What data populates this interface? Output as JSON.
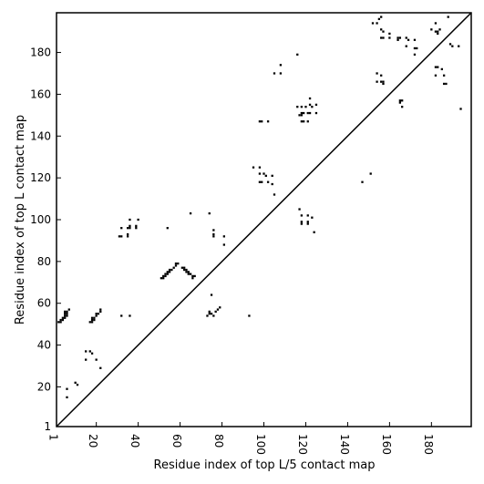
{
  "chart_data": {
    "type": "heatmap",
    "xlabel": "Residue index of top L/5 contact map",
    "ylabel": "Residue index of top L contact map",
    "xlim": [
      1,
      199
    ],
    "ylim": [
      1,
      199
    ],
    "x_ticks": [
      1,
      20,
      40,
      60,
      80,
      100,
      120,
      140,
      160,
      180
    ],
    "y_ticks": [
      1,
      20,
      40,
      60,
      80,
      100,
      120,
      140,
      160,
      180
    ],
    "diagonal": true,
    "cell_color": "#000000",
    "points": [
      [
        2,
        51
      ],
      [
        3,
        51
      ],
      [
        3,
        52
      ],
      [
        4,
        52
      ],
      [
        4,
        53
      ],
      [
        5,
        53
      ],
      [
        5,
        54
      ],
      [
        6,
        54
      ],
      [
        5,
        55
      ],
      [
        6,
        55
      ],
      [
        5,
        56
      ],
      [
        6,
        56
      ],
      [
        7,
        57
      ],
      [
        6,
        19
      ],
      [
        6,
        15
      ],
      [
        10,
        22
      ],
      [
        11,
        21
      ],
      [
        17,
        51
      ],
      [
        18,
        51
      ],
      [
        18,
        52
      ],
      [
        19,
        52
      ],
      [
        18,
        53
      ],
      [
        19,
        53
      ],
      [
        20,
        54
      ],
      [
        20,
        55
      ],
      [
        21,
        55
      ],
      [
        22,
        56
      ],
      [
        22,
        57
      ],
      [
        15,
        37
      ],
      [
        17,
        37
      ],
      [
        18,
        36
      ],
      [
        15,
        33
      ],
      [
        20,
        33
      ],
      [
        22,
        29
      ],
      [
        31,
        92
      ],
      [
        32,
        92
      ],
      [
        32,
        96
      ],
      [
        35,
        92
      ],
      [
        35,
        93
      ],
      [
        35,
        96
      ],
      [
        36,
        96
      ],
      [
        36,
        97
      ],
      [
        36,
        100
      ],
      [
        39,
        96
      ],
      [
        39,
        97
      ],
      [
        40,
        100
      ],
      [
        32,
        54
      ],
      [
        36,
        54
      ],
      [
        54,
        96
      ],
      [
        51,
        72
      ],
      [
        52,
        72
      ],
      [
        52,
        73
      ],
      [
        53,
        73
      ],
      [
        53,
        74
      ],
      [
        54,
        74
      ],
      [
        54,
        75
      ],
      [
        55,
        75
      ],
      [
        55,
        76
      ],
      [
        56,
        76
      ],
      [
        57,
        77
      ],
      [
        58,
        78
      ],
      [
        58,
        79
      ],
      [
        59,
        79
      ],
      [
        61,
        77
      ],
      [
        62,
        77
      ],
      [
        62,
        76
      ],
      [
        63,
        76
      ],
      [
        63,
        75
      ],
      [
        64,
        75
      ],
      [
        64,
        74
      ],
      [
        65,
        74
      ],
      [
        66,
        73
      ],
      [
        67,
        73
      ],
      [
        66,
        72
      ],
      [
        65,
        103
      ],
      [
        74,
        103
      ],
      [
        76,
        95
      ],
      [
        76,
        93
      ],
      [
        76,
        92
      ],
      [
        81,
        92
      ],
      [
        81,
        88
      ],
      [
        75,
        64
      ],
      [
        73,
        54
      ],
      [
        74,
        55
      ],
      [
        74,
        56
      ],
      [
        75,
        55
      ],
      [
        76,
        54
      ],
      [
        77,
        56
      ],
      [
        78,
        57
      ],
      [
        79,
        58
      ],
      [
        93,
        54
      ],
      [
        95,
        125
      ],
      [
        98,
        125
      ],
      [
        98,
        122
      ],
      [
        100,
        122
      ],
      [
        101,
        121
      ],
      [
        104,
        121
      ],
      [
        98,
        118
      ],
      [
        99,
        118
      ],
      [
        102,
        118
      ],
      [
        104,
        117
      ],
      [
        105,
        112
      ],
      [
        98,
        147
      ],
      [
        99,
        147
      ],
      [
        102,
        147
      ],
      [
        105,
        170
      ],
      [
        108,
        170
      ],
      [
        108,
        174
      ],
      [
        116,
        179
      ],
      [
        116,
        154
      ],
      [
        118,
        154
      ],
      [
        120,
        154
      ],
      [
        118,
        151
      ],
      [
        119,
        151
      ],
      [
        117,
        150
      ],
      [
        118,
        150
      ],
      [
        118,
        147
      ],
      [
        119,
        147
      ],
      [
        121,
        147
      ],
      [
        121,
        151
      ],
      [
        122,
        151
      ],
      [
        123,
        154
      ],
      [
        122,
        155
      ],
      [
        125,
        155
      ],
      [
        125,
        151
      ],
      [
        122,
        158
      ],
      [
        117,
        105
      ],
      [
        118,
        102
      ],
      [
        121,
        102
      ],
      [
        118,
        99
      ],
      [
        118,
        98
      ],
      [
        121,
        98
      ],
      [
        121,
        99
      ],
      [
        123,
        101
      ],
      [
        124,
        94
      ],
      [
        147,
        118
      ],
      [
        151,
        122
      ],
      [
        152,
        194
      ],
      [
        154,
        194
      ],
      [
        155,
        196
      ],
      [
        156,
        197
      ],
      [
        156,
        191
      ],
      [
        156,
        187
      ],
      [
        157,
        187
      ],
      [
        157,
        190
      ],
      [
        160,
        187
      ],
      [
        160,
        189
      ],
      [
        164,
        186
      ],
      [
        164,
        187
      ],
      [
        165,
        187
      ],
      [
        168,
        187
      ],
      [
        169,
        186
      ],
      [
        168,
        183
      ],
      [
        172,
        186
      ],
      [
        172,
        182
      ],
      [
        173,
        182
      ],
      [
        172,
        179
      ],
      [
        154,
        170
      ],
      [
        154,
        166
      ],
      [
        156,
        169
      ],
      [
        156,
        166
      ],
      [
        157,
        165
      ],
      [
        157,
        166
      ],
      [
        165,
        157
      ],
      [
        166,
        157
      ],
      [
        165,
        156
      ],
      [
        166,
        154
      ],
      [
        180,
        191
      ],
      [
        182,
        190
      ],
      [
        182,
        194
      ],
      [
        183,
        189
      ],
      [
        183,
        190
      ],
      [
        184,
        191
      ],
      [
        182,
        173
      ],
      [
        183,
        173
      ],
      [
        182,
        169
      ],
      [
        185,
        172
      ],
      [
        186,
        169
      ],
      [
        186,
        165
      ],
      [
        187,
        165
      ],
      [
        188,
        197
      ],
      [
        189,
        184
      ],
      [
        190,
        183
      ],
      [
        193,
        183
      ],
      [
        194,
        153
      ]
    ]
  }
}
